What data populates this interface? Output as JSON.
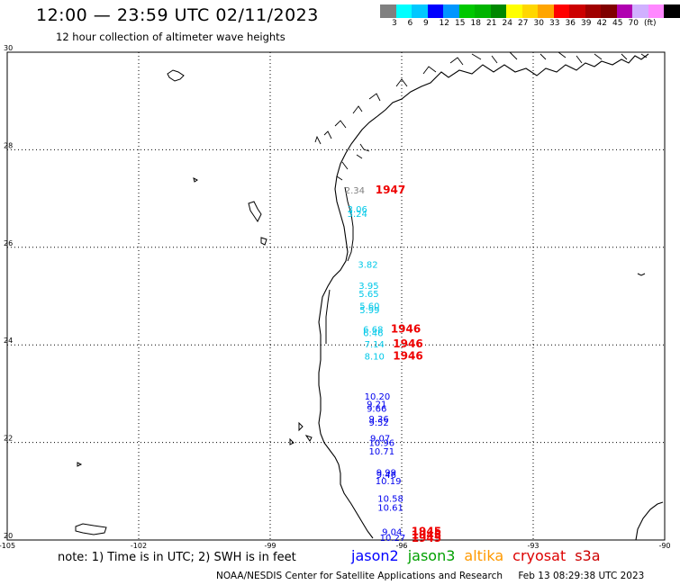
{
  "header": {
    "title": "12:00 — 23:59 UTC 02/11/2023",
    "subtitle": "12 hour collection of altimeter wave heights"
  },
  "legend": {
    "colors": [
      "#808080",
      "#00ffff",
      "#00c8ff",
      "#0000ff",
      "#0096ff",
      "#00c800",
      "#00b400",
      "#008800",
      "#ffff00",
      "#ffd700",
      "#ffa500",
      "#ff0000",
      "#cc0000",
      "#a00000",
      "#800000",
      "#b000b0",
      "#d0b0ff",
      "#ff88ff",
      "#000000"
    ],
    "labels": [
      "3",
      "6",
      "9",
      "12",
      "15",
      "18",
      "21",
      "24",
      "27",
      "30",
      "33",
      "36",
      "39",
      "42",
      "45",
      "70",
      "(ft)"
    ]
  },
  "map": {
    "lat_labels": [
      "30",
      "28",
      "26",
      "24",
      "22",
      "20"
    ],
    "lon_labels": [
      "-105",
      "-102",
      "-99",
      "-96",
      "-93",
      "-90"
    ]
  },
  "observations": [
    {
      "text": "2.34",
      "lat": 27.1,
      "lon": -97.3,
      "color": "#808080"
    },
    {
      "text": "1947",
      "lat": 27.1,
      "lon": -96.6,
      "color": "#ee0000",
      "bold": true
    },
    {
      "text": "3.06",
      "lat": 26.72,
      "lon": -97.24,
      "color": "#00c8e8"
    },
    {
      "text": "3.24",
      "lat": 26.62,
      "lon": -97.24,
      "color": "#00c8e8"
    },
    {
      "text": "3.82",
      "lat": 25.58,
      "lon": -97.0,
      "color": "#00c8e8"
    },
    {
      "text": "3.95",
      "lat": 25.15,
      "lon": -96.98,
      "color": "#00c8e8"
    },
    {
      "text": "5.65",
      "lat": 24.98,
      "lon": -96.98,
      "color": "#00c8e8"
    },
    {
      "text": "5.60",
      "lat": 24.73,
      "lon": -96.96,
      "color": "#00c8e8"
    },
    {
      "text": "5.99",
      "lat": 24.65,
      "lon": -96.96,
      "color": "#00c8e8"
    },
    {
      "text": "6.68",
      "lat": 24.25,
      "lon": -96.88,
      "color": "#00c8e8"
    },
    {
      "text": "6.46",
      "lat": 24.18,
      "lon": -96.88,
      "color": "#00c8e8"
    },
    {
      "text": "1946",
      "lat": 24.25,
      "lon": -96.25,
      "color": "#ee0000",
      "bold": true
    },
    {
      "text": "7.14",
      "lat": 23.95,
      "lon": -96.85,
      "color": "#00c8e8"
    },
    {
      "text": "1946",
      "lat": 23.95,
      "lon": -96.2,
      "color": "#ee0000",
      "bold": true
    },
    {
      "text": "8.10",
      "lat": 23.7,
      "lon": -96.85,
      "color": "#00c8e8"
    },
    {
      "text": "1946",
      "lat": 23.7,
      "lon": -96.2,
      "color": "#ee0000",
      "bold": true
    },
    {
      "text": "10.20",
      "lat": 22.88,
      "lon": -96.85,
      "color": "#0000ee"
    },
    {
      "text": "9.21",
      "lat": 22.72,
      "lon": -96.8,
      "color": "#0000ee"
    },
    {
      "text": "9.66",
      "lat": 22.63,
      "lon": -96.8,
      "color": "#0000ee"
    },
    {
      "text": "9.36",
      "lat": 22.42,
      "lon": -96.75,
      "color": "#0000ee"
    },
    {
      "text": "9.52",
      "lat": 22.34,
      "lon": -96.75,
      "color": "#0000ee"
    },
    {
      "text": "9.07",
      "lat": 22.02,
      "lon": -96.72,
      "color": "#0000ee"
    },
    {
      "text": "10.96",
      "lat": 21.93,
      "lon": -96.75,
      "color": "#0000ee"
    },
    {
      "text": "10.71",
      "lat": 21.75,
      "lon": -96.75,
      "color": "#0000ee"
    },
    {
      "text": "9.99",
      "lat": 21.32,
      "lon": -96.58,
      "color": "#0000ee"
    },
    {
      "text": "9.46",
      "lat": 21.27,
      "lon": -96.58,
      "color": "#0000ee"
    },
    {
      "text": "10.19",
      "lat": 21.14,
      "lon": -96.6,
      "color": "#0000ee"
    },
    {
      "text": "10.58",
      "lat": 20.78,
      "lon": -96.55,
      "color": "#0000ee"
    },
    {
      "text": "10.61",
      "lat": 20.6,
      "lon": -96.55,
      "color": "#0000ee"
    },
    {
      "text": "9.04",
      "lat": 20.1,
      "lon": -96.45,
      "color": "#0000ee"
    },
    {
      "text": "10.27",
      "lat": 19.98,
      "lon": -96.5,
      "color": "#0000ee"
    },
    {
      "text": "1945",
      "lat": 20.1,
      "lon": -95.78,
      "color": "#ee0000",
      "bold": true
    },
    {
      "text": "1945",
      "lat": 20.03,
      "lon": -95.78,
      "color": "#ee0000",
      "bold": true
    },
    {
      "text": "1945",
      "lat": 19.96,
      "lon": -95.78,
      "color": "#ee0000",
      "bold": true
    }
  ],
  "note": "note:  1) Time is in UTC;  2) SWH is in feet",
  "satellites": [
    {
      "name": "jason2",
      "color": "#0000ff"
    },
    {
      "name": "jason3",
      "color": "#00a000"
    },
    {
      "name": "altika",
      "color": "#ff9900"
    },
    {
      "name": "cryosat",
      "color": "#dd0000"
    },
    {
      "name": "s3a",
      "color": "#cc0000"
    }
  ],
  "footer": {
    "agency": "NOAA/NESDIS Center for Satellite Applications and Research",
    "timestamp": "Feb 13 08:29:38 UTC 2023"
  }
}
